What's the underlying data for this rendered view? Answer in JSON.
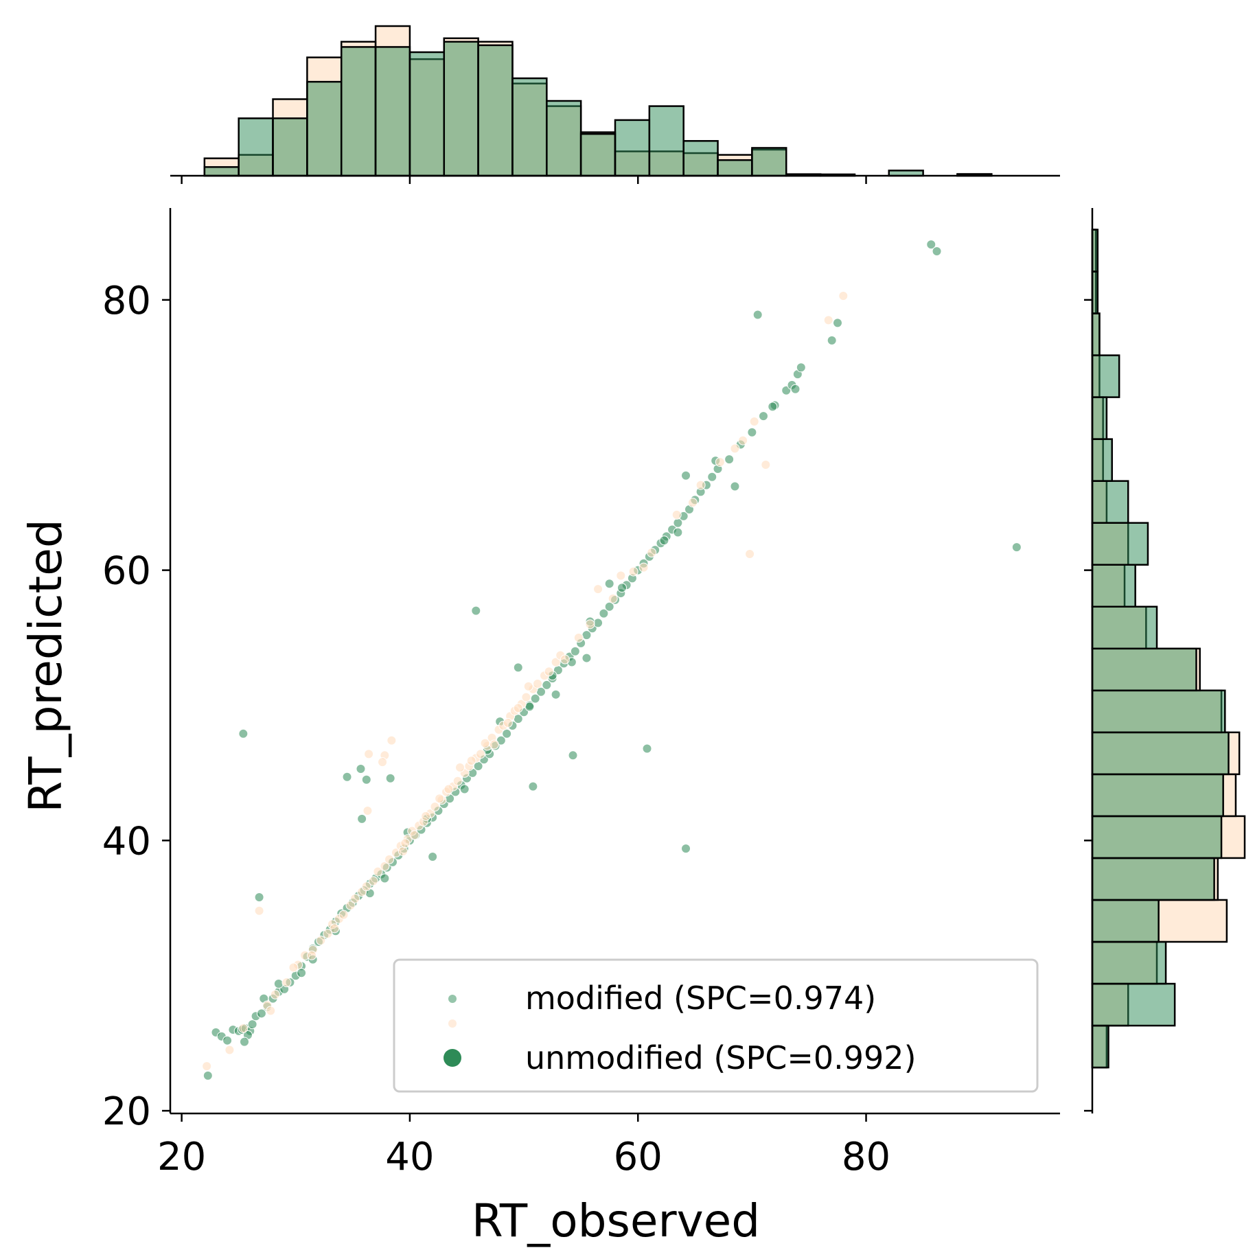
{
  "chart_data": {
    "type": "scatter",
    "xlabel": "RT_observed",
    "ylabel": "RT_predicted",
    "xlim": [
      19,
      97
    ],
    "ylim": [
      19.8,
      86.8
    ],
    "xticks": [
      20,
      40,
      60,
      80
    ],
    "yticks": [
      20,
      40,
      60,
      80
    ],
    "xtick_labels": [
      "20",
      "40",
      "60",
      "80"
    ],
    "ytick_labels": [
      "20",
      "40",
      "60",
      "80"
    ],
    "grid": false,
    "legend_position": "lower-right",
    "colors": {
      "modified": "#2e8b57",
      "unmodified": "#ffdab9",
      "bar_edge": "#000000",
      "overlap_bar": "#98bd98"
    },
    "series": [
      {
        "name": "modified (SPC=0.974)",
        "key": "modified",
        "points": [
          [
            22.3,
            22.6
          ],
          [
            23,
            25.8
          ],
          [
            23.5,
            25.5
          ],
          [
            24,
            25.2
          ],
          [
            24.5,
            26
          ],
          [
            25,
            25.9
          ],
          [
            25.3,
            26
          ],
          [
            25.6,
            26.1
          ],
          [
            26,
            25.9
          ],
          [
            25.8,
            25.6
          ],
          [
            25.5,
            25.1
          ],
          [
            26.2,
            26.4
          ],
          [
            26.5,
            27
          ],
          [
            27,
            27.2
          ],
          [
            27.5,
            27.7
          ],
          [
            28,
            28.3
          ],
          [
            28.5,
            28.8
          ],
          [
            29,
            29
          ],
          [
            29.5,
            29.5
          ],
          [
            30,
            30
          ],
          [
            30.5,
            30.7
          ],
          [
            31,
            31.4
          ],
          [
            31.5,
            32
          ],
          [
            32,
            32.5
          ],
          [
            32.5,
            33
          ],
          [
            33,
            33.4
          ],
          [
            33.5,
            34
          ],
          [
            34,
            34.6
          ],
          [
            34.5,
            35
          ],
          [
            35,
            35.4
          ],
          [
            35.5,
            35.9
          ],
          [
            36,
            36.3
          ],
          [
            36.5,
            36.8
          ],
          [
            37,
            37.2
          ],
          [
            37.5,
            37.5
          ],
          [
            38,
            38
          ],
          [
            38.5,
            38.4
          ],
          [
            39,
            38.9
          ],
          [
            39.5,
            39.4
          ],
          [
            40,
            40
          ],
          [
            40.5,
            40.4
          ],
          [
            41,
            40.8
          ],
          [
            41.5,
            41.3
          ],
          [
            42,
            41.7
          ],
          [
            42.5,
            42.2
          ],
          [
            43,
            42.7
          ],
          [
            43.5,
            43.1
          ],
          [
            44,
            43.6
          ],
          [
            44.5,
            44.1
          ],
          [
            45,
            44.6
          ],
          [
            45.5,
            45
          ],
          [
            46,
            45.5
          ],
          [
            46.5,
            46
          ],
          [
            47,
            46.4
          ],
          [
            47.5,
            47
          ],
          [
            48,
            47.4
          ],
          [
            48.5,
            47.9
          ],
          [
            49,
            48.5
          ],
          [
            49.5,
            49
          ],
          [
            50,
            49.5
          ],
          [
            50.5,
            50
          ],
          [
            51,
            50.5
          ],
          [
            51.5,
            51
          ],
          [
            52,
            51.5
          ],
          [
            52.5,
            52
          ],
          [
            53,
            52.6
          ],
          [
            53.5,
            53.1
          ],
          [
            54,
            53.6
          ],
          [
            54.5,
            54
          ],
          [
            55,
            54.6
          ],
          [
            55.5,
            55.2
          ],
          [
            56,
            55.7
          ],
          [
            56.5,
            56.1
          ],
          [
            57,
            56.8
          ],
          [
            57.5,
            57.3
          ],
          [
            58,
            57.8
          ],
          [
            58.5,
            58.3
          ],
          [
            59,
            58.9
          ],
          [
            59.5,
            59.4
          ],
          [
            60,
            60
          ],
          [
            60.5,
            60.5
          ],
          [
            61,
            61
          ],
          [
            61.5,
            61.5
          ],
          [
            62,
            62
          ],
          [
            62.5,
            62.5
          ],
          [
            63,
            63
          ],
          [
            63.5,
            63.5
          ],
          [
            64,
            64
          ],
          [
            64.5,
            64.5
          ],
          [
            65,
            65.2
          ],
          [
            65.5,
            65.8
          ],
          [
            66,
            66.3
          ],
          [
            66.5,
            66.9
          ],
          [
            67,
            67.5
          ],
          [
            68,
            68.2
          ],
          [
            69,
            69.3
          ],
          [
            70,
            70.2
          ],
          [
            71,
            71.4
          ],
          [
            72,
            72.2
          ],
          [
            73,
            73.3
          ],
          [
            73.5,
            73.7
          ],
          [
            74,
            74.5
          ],
          [
            74.3,
            75
          ],
          [
            73.8,
            73.4
          ],
          [
            77,
            77
          ],
          [
            77.5,
            78.3
          ],
          [
            70.5,
            78.9
          ],
          [
            85.7,
            84.1
          ],
          [
            86.2,
            83.6
          ],
          [
            93.2,
            61.7
          ],
          [
            64.2,
            39.4
          ],
          [
            60.8,
            46.8
          ],
          [
            54.3,
            46.3
          ],
          [
            50.8,
            44
          ],
          [
            45.8,
            57
          ],
          [
            25.4,
            47.9
          ],
          [
            26.8,
            35.8
          ],
          [
            35.7,
            45.3
          ],
          [
            35.8,
            41.6
          ],
          [
            36.2,
            44.5
          ],
          [
            34.5,
            44.7
          ],
          [
            38.3,
            44.6
          ],
          [
            42,
            38.8
          ],
          [
            33.5,
            33.3
          ],
          [
            27.2,
            28.3
          ],
          [
            49.5,
            52.8
          ],
          [
            52.8,
            50.8
          ],
          [
            55.5,
            53.5
          ],
          [
            57.5,
            59
          ],
          [
            63.5,
            62.8
          ],
          [
            64.2,
            67
          ],
          [
            68.5,
            66.2
          ],
          [
            44.8,
            43.8
          ],
          [
            41.5,
            41.6
          ],
          [
            39.8,
            40.6
          ],
          [
            37.8,
            37.2
          ],
          [
            36.5,
            36.1
          ],
          [
            31.5,
            31.2
          ],
          [
            30.5,
            30.2
          ],
          [
            28.5,
            29.4
          ],
          [
            46.8,
            46.7
          ],
          [
            47.9,
            48.8
          ],
          [
            50.5,
            49.9
          ],
          [
            52.5,
            52.2
          ],
          [
            54.2,
            53.2
          ],
          [
            55.8,
            56.2
          ],
          [
            58.6,
            58.7
          ],
          [
            62.3,
            62.2
          ],
          [
            71.8,
            72.1
          ],
          [
            66.8,
            68.1
          ]
        ]
      },
      {
        "name": "unmodified (SPC=0.992)",
        "key": "unmodified",
        "points": [
          [
            22.2,
            23.3
          ],
          [
            24.2,
            24.5
          ],
          [
            26.8,
            34.8
          ],
          [
            27.5,
            27.8
          ],
          [
            28.2,
            28.6
          ],
          [
            29.2,
            29.5
          ],
          [
            30.2,
            30.8
          ],
          [
            30.8,
            31.5
          ],
          [
            31.5,
            31.9
          ],
          [
            32.2,
            32.6
          ],
          [
            32.8,
            33.1
          ],
          [
            33.2,
            33.8
          ],
          [
            33.8,
            34.2
          ],
          [
            34.2,
            34.5
          ],
          [
            34.8,
            35.2
          ],
          [
            35.2,
            35.7
          ],
          [
            35.8,
            36.2
          ],
          [
            36.2,
            36.6
          ],
          [
            36.8,
            37
          ],
          [
            37.2,
            37.7
          ],
          [
            37.8,
            38.1
          ],
          [
            38.2,
            38.6
          ],
          [
            38.8,
            39.1
          ],
          [
            39.2,
            39.6
          ],
          [
            39.8,
            40.1
          ],
          [
            40.2,
            40.7
          ],
          [
            40.8,
            41.1
          ],
          [
            41.2,
            41.4
          ],
          [
            41.8,
            42
          ],
          [
            42.2,
            42.5
          ],
          [
            42.8,
            43
          ],
          [
            43.2,
            43.6
          ],
          [
            43.8,
            44
          ],
          [
            44.2,
            44.4
          ],
          [
            44.8,
            45
          ],
          [
            45.2,
            45.5
          ],
          [
            45.8,
            46.1
          ],
          [
            46.2,
            46.4
          ],
          [
            46.8,
            47
          ],
          [
            47.2,
            47.6
          ],
          [
            47.8,
            48.2
          ],
          [
            48.2,
            48.5
          ],
          [
            48.8,
            49.2
          ],
          [
            49.2,
            49.6
          ],
          [
            49.8,
            50.1
          ],
          [
            50.2,
            50.6
          ],
          [
            50.8,
            51.2
          ],
          [
            51.2,
            51.6
          ],
          [
            51.8,
            52.2
          ],
          [
            52.2,
            52.5
          ],
          [
            52.8,
            53.2
          ],
          [
            53.2,
            53.7
          ],
          [
            54.8,
            55
          ],
          [
            55.8,
            56
          ],
          [
            56.5,
            58.6
          ],
          [
            57.8,
            57.9
          ],
          [
            58.5,
            59.6
          ],
          [
            60.5,
            60.2
          ],
          [
            64.8,
            65
          ],
          [
            65.5,
            66.3
          ],
          [
            67.2,
            68
          ],
          [
            68.5,
            69
          ],
          [
            69.2,
            69.6
          ],
          [
            70.2,
            71
          ],
          [
            71.2,
            67.8
          ],
          [
            69.8,
            61.2
          ],
          [
            76.7,
            78.5
          ],
          [
            78,
            80.3
          ],
          [
            37.8,
            46.3
          ],
          [
            36.3,
            42.2
          ],
          [
            38.4,
            47.4
          ],
          [
            36.4,
            46.4
          ],
          [
            37.6,
            45.8
          ],
          [
            40.4,
            40.4
          ],
          [
            39.4,
            39.2
          ],
          [
            41.4,
            41.8
          ],
          [
            43.4,
            43.8
          ],
          [
            45.4,
            45.9
          ],
          [
            46.6,
            47.2
          ],
          [
            48.6,
            48.7
          ],
          [
            49.5,
            49.8
          ],
          [
            33.4,
            33.5
          ],
          [
            31.4,
            31.5
          ],
          [
            29.8,
            30.6
          ],
          [
            27.8,
            27.4
          ],
          [
            25.4,
            26.1
          ],
          [
            42.6,
            43.1
          ],
          [
            44.4,
            45.4
          ],
          [
            50.4,
            51.4
          ],
          [
            53.6,
            53.4
          ],
          [
            61.2,
            61.3
          ],
          [
            63.4,
            64.1
          ],
          [
            59.6,
            59.9
          ],
          [
            47.4,
            47.1
          ],
          [
            39.6,
            39.8
          ]
        ]
      }
    ],
    "marginal_x": {
      "bin_edges": [
        22,
        25,
        28,
        31,
        34,
        37,
        40,
        43,
        46,
        49,
        52,
        55,
        58,
        61,
        64,
        67,
        70,
        73,
        76,
        79,
        82,
        85,
        88,
        91,
        94
      ],
      "modified": [
        5,
        33,
        33,
        54,
        74,
        74,
        71,
        77,
        75,
        56,
        43,
        24,
        32,
        40,
        20,
        9,
        16,
        0.9,
        0.5,
        0,
        3,
        0,
        0.7,
        0
      ],
      "unmodified": [
        10,
        12,
        44,
        68,
        77,
        86,
        67,
        79,
        77,
        53,
        40,
        25,
        14,
        14,
        13,
        12,
        15,
        0.9,
        0.8,
        0,
        0,
        0,
        1,
        0
      ]
    },
    "marginal_y": {
      "bin_edges": [
        23.2,
        26.3,
        29.4,
        32.5,
        35.6,
        38.7,
        41.8,
        44.9,
        48,
        51.1,
        54.2,
        57.3,
        60.4,
        63.5,
        66.6,
        69.7,
        72.8,
        75.9,
        79,
        82.1,
        85.2
      ],
      "modified": [
        9,
        46,
        41,
        37,
        68,
        72,
        73,
        76,
        74,
        58,
        36,
        24,
        31,
        20,
        11,
        8,
        15,
        4,
        3,
        3
      ],
      "unmodified": [
        8,
        20,
        36,
        75,
        70,
        85,
        80,
        82,
        72,
        60,
        30,
        18,
        20,
        8,
        6,
        6,
        4,
        4,
        2,
        2
      ]
    }
  }
}
